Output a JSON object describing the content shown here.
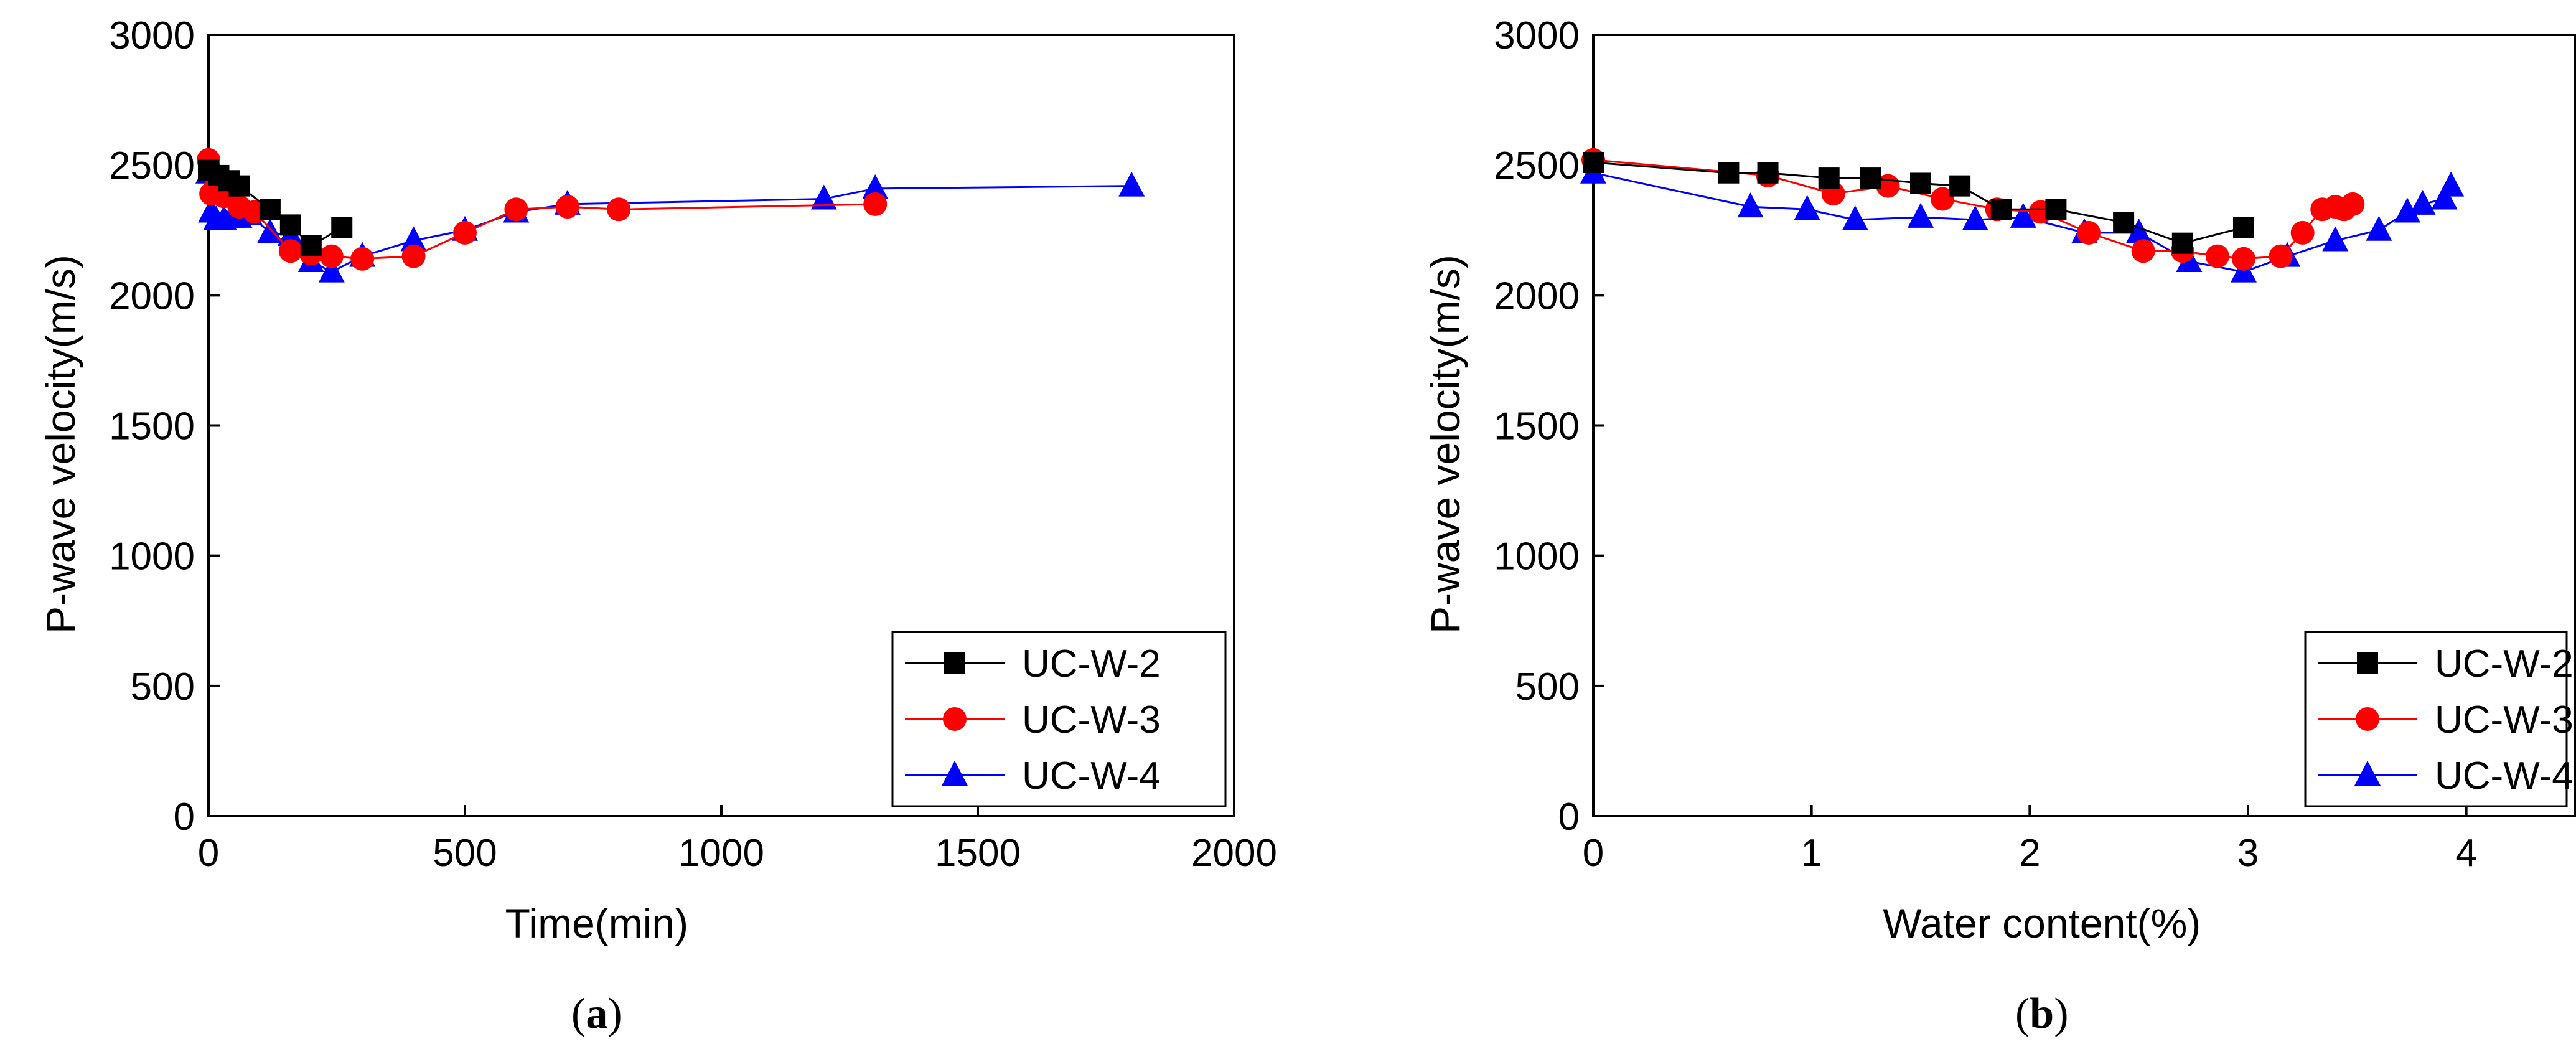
{
  "figure": {
    "series_styles": [
      {
        "name": "UC-W-2",
        "color": "#000000",
        "marker": "square"
      },
      {
        "name": "UC-W-3",
        "color": "#ff0000",
        "marker": "circle"
      },
      {
        "name": "UC-W-4",
        "color": "#0000ff",
        "marker": "triangle"
      }
    ]
  },
  "chart_data": [
    {
      "type": "line",
      "panel_label_letter": "a",
      "title": "",
      "xlabel": "Time(min)",
      "ylabel": "P-wave velocity(m/s)",
      "xlim": [
        0,
        2000
      ],
      "ylim": [
        0,
        3000
      ],
      "xticks": [
        0,
        500,
        1000,
        1500,
        2000
      ],
      "yticks": [
        0,
        500,
        1000,
        1500,
        2000,
        2500,
        3000
      ],
      "grid": false,
      "legend_position": "bottom-right",
      "series": [
        {
          "name": "UC-W-2",
          "x": [
            0,
            20,
            40,
            60,
            120,
            160,
            200,
            260
          ],
          "y": [
            2480,
            2460,
            2440,
            2420,
            2330,
            2270,
            2190,
            2260
          ]
        },
        {
          "name": "UC-W-3",
          "x": [
            0,
            5,
            15,
            30,
            60,
            90,
            160,
            200,
            240,
            300,
            400,
            500,
            600,
            700,
            800,
            1300
          ],
          "y": [
            2520,
            2390,
            2420,
            2380,
            2340,
            2320,
            2170,
            2160,
            2150,
            2140,
            2150,
            2240,
            2330,
            2340,
            2330,
            2350
          ]
        },
        {
          "name": "UC-W-4",
          "x": [
            0,
            5,
            15,
            30,
            45,
            60,
            80,
            120,
            160,
            200,
            240,
            300,
            400,
            500,
            600,
            700,
            1200,
            1300,
            1800
          ],
          "y": [
            2470,
            2320,
            2290,
            2290,
            2300,
            2300,
            2310,
            2240,
            2230,
            2130,
            2090,
            2150,
            2210,
            2250,
            2320,
            2350,
            2370,
            2410,
            2420
          ]
        }
      ]
    },
    {
      "type": "line",
      "panel_label_letter": "b",
      "title": "",
      "xlabel": "Water content(%)",
      "ylabel": "P-wave velocity(m/s)",
      "xlim": [
        0,
        4.5
      ],
      "ylim": [
        0,
        3000
      ],
      "xticks": [
        0,
        1,
        2,
        3,
        4
      ],
      "yticks": [
        0,
        500,
        1000,
        1500,
        2000,
        2500,
        3000
      ],
      "grid": false,
      "legend_position": "bottom-right",
      "series": [
        {
          "name": "UC-W-2",
          "x": [
            0,
            0.62,
            0.8,
            1.08,
            1.27,
            1.5,
            1.68,
            1.87,
            2.12,
            2.43,
            2.7,
            2.98
          ],
          "y": [
            2510,
            2470,
            2470,
            2450,
            2450,
            2430,
            2420,
            2330,
            2330,
            2280,
            2200,
            2260
          ]
        },
        {
          "name": "UC-W-3",
          "x": [
            0,
            0.8,
            1.1,
            1.35,
            1.6,
            1.85,
            2.05,
            2.27,
            2.52,
            2.7,
            2.86,
            2.98,
            3.15,
            3.25,
            3.34,
            3.4,
            3.44,
            3.48
          ],
          "y": [
            2520,
            2460,
            2390,
            2420,
            2370,
            2330,
            2320,
            2240,
            2170,
            2170,
            2150,
            2140,
            2150,
            2240,
            2330,
            2340,
            2330,
            2350
          ]
        },
        {
          "name": "UC-W-4",
          "x": [
            0,
            0.72,
            0.98,
            1.2,
            1.5,
            1.75,
            1.97,
            2.25,
            2.5,
            2.73,
            2.98,
            3.18,
            3.4,
            3.6,
            3.73,
            3.8,
            3.9,
            3.93
          ],
          "y": [
            2470,
            2340,
            2330,
            2290,
            2300,
            2290,
            2300,
            2240,
            2240,
            2130,
            2090,
            2150,
            2210,
            2250,
            2320,
            2350,
            2370,
            2420
          ]
        }
      ]
    }
  ]
}
